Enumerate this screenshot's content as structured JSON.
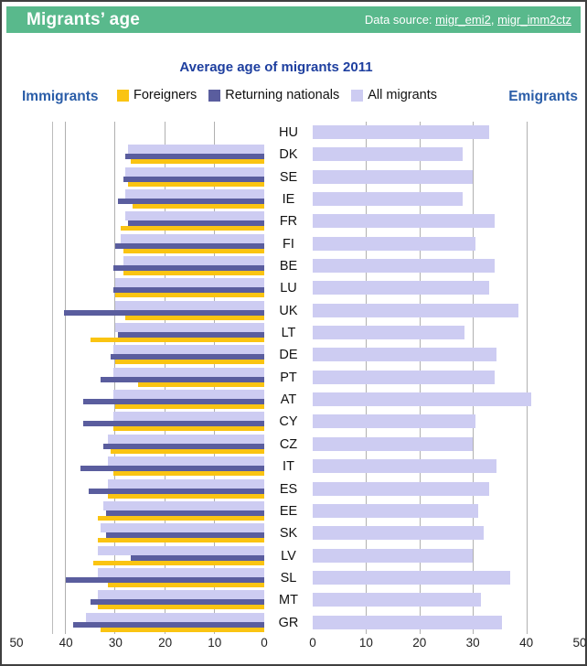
{
  "header": {
    "title": "Migrants’ age",
    "data_source_label": "Data source:",
    "links": [
      "migr_emi2",
      "migr_imm2ctz"
    ],
    "separator": ", "
  },
  "chart_data": {
    "type": "bar",
    "orientation": "horizontal-bidirectional",
    "title": "Average age of migrants 2011",
    "left_panel_title": "Immigrants",
    "right_panel_title": "Emigrants",
    "legend": [
      {
        "key": "foreigners",
        "label": "Foreigners"
      },
      {
        "key": "returning",
        "label": "Returning nationals"
      },
      {
        "key": "all",
        "label": "All migrants"
      }
    ],
    "colors": {
      "foreigners": "#fac412",
      "returning": "#5a5d9e",
      "all": "#cdccf2",
      "gridline": "#b0b0b0",
      "header_bg": "#59b98c",
      "title_text": "#1e3f9f",
      "side_label_text": "#2a5da8"
    },
    "axis": {
      "max": 50,
      "gridlines": [
        10,
        20,
        30,
        40
      ],
      "ticks_left": [
        50,
        40,
        30,
        20,
        10,
        0
      ],
      "ticks_right": [
        0,
        10,
        20,
        30,
        40,
        50
      ]
    },
    "categories": [
      "HU",
      "DK",
      "SE",
      "IE",
      "FR",
      "FI",
      "BE",
      "LU",
      "UK",
      "LT",
      "DE",
      "PT",
      "AT",
      "CY",
      "CZ",
      "IT",
      "ES",
      "EE",
      "SK",
      "LV",
      "SL",
      "MT",
      "GR"
    ],
    "series": [
      {
        "name": "Immigrants - All migrants",
        "side": "left",
        "key": "all",
        "values": [
          null,
          27.5,
          28,
          28,
          28,
          29,
          28.5,
          30,
          30,
          30,
          30.5,
          30.5,
          30.5,
          30.5,
          31.5,
          31.5,
          31.5,
          32.5,
          33,
          33.5,
          33.5,
          33.5,
          36
        ]
      },
      {
        "name": "Immigrants - Returning nationals",
        "side": "left",
        "key": "returning",
        "values": [
          null,
          28,
          28.5,
          29.5,
          27.5,
          30,
          30.5,
          30.5,
          40.5,
          29.5,
          31,
          33,
          36.5,
          36.5,
          32.5,
          37,
          35.5,
          32,
          32,
          27,
          40,
          35,
          38.5
        ]
      },
      {
        "name": "Immigrants - Foreigners",
        "side": "left",
        "key": "foreigners",
        "values": [
          null,
          27,
          27.5,
          26.5,
          29,
          28.5,
          28.5,
          30,
          28,
          35,
          30,
          25.5,
          30,
          30.5,
          31,
          30.5,
          31.5,
          33.5,
          33.5,
          34.5,
          31.5,
          33.5,
          33
        ]
      },
      {
        "name": "Emigrants - All migrants",
        "side": "right",
        "key": "all",
        "values": [
          33,
          28,
          30,
          28,
          34,
          30.5,
          34,
          33,
          38.5,
          28.5,
          34.5,
          34,
          41,
          30.5,
          30,
          34.5,
          33,
          31,
          32,
          30,
          37,
          31.5,
          35.5
        ]
      }
    ]
  }
}
